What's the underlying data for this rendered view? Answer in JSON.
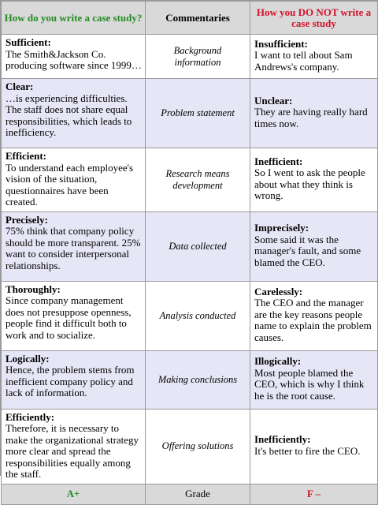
{
  "header": {
    "col1": "How do you write a case study?",
    "col2": "Commentaries",
    "col3": "How you DO NOT write a case study"
  },
  "rows": [
    {
      "good_title": "Sufficient:",
      "good_text": "The Smith&Jackson Co. producing software since 1999…",
      "comment": "Background information",
      "bad_title": "Insufficient:",
      "bad_text": "I want to tell about Sam Andrews's company."
    },
    {
      "good_title": "Clear:",
      "good_text": "…is experiencing difficulties. The staff does not share equal responsibilities, which leads to inefficiency.",
      "comment": "Problem statement",
      "bad_title": "Unclear:",
      "bad_text": "They are having really hard times now."
    },
    {
      "good_title": "Efficient:",
      "good_text": "To understand each employee's vision of the situation, questionnaires have been created.",
      "comment": "Research means development",
      "bad_title": "Inefficient:",
      "bad_text": "So I went to ask the people about what they think is wrong."
    },
    {
      "good_title": "Precisely:",
      "good_text": "75% think that company policy should be more transparent. 25% want to consider interpersonal relationships.",
      "comment": "Data collected",
      "bad_title": "Imprecisely:",
      "bad_text": "Some said it was the manager's fault, and some blamed the CEO."
    },
    {
      "good_title": "Thoroughly:",
      "good_text": "Since company management does not presuppose openness, people find it difficult both to work and to socialize.",
      "comment": "Analysis conducted",
      "bad_title": "Carelessly:",
      "bad_text": "The CEO and the manager are the key reasons people name to explain the problem causes."
    },
    {
      "good_title": "Logically:",
      "good_text": "Hence, the problem stems from inefficient company policy and lack of information.",
      "comment": "Making conclusions",
      "bad_title": "Illogically:",
      "bad_text": "Most people blamed the CEO, which is why I think he is the root cause."
    },
    {
      "good_title": "Efficiently:",
      "good_text": "Therefore, it is necessary to make the organizational strategy more clear and spread the responsibilities equally among the staff.",
      "comment": "Offering solutions",
      "bad_title": "Inefficiently:",
      "bad_text": "It's better to fire the CEO."
    }
  ],
  "footer": {
    "good_grade": "A+",
    "label": "Grade",
    "bad_grade": "F –"
  },
  "colors": {
    "good": "#218b21",
    "bad": "#d1122b",
    "header_bg": "#d9d9d9",
    "shade_bg": "#e6e6f6"
  }
}
